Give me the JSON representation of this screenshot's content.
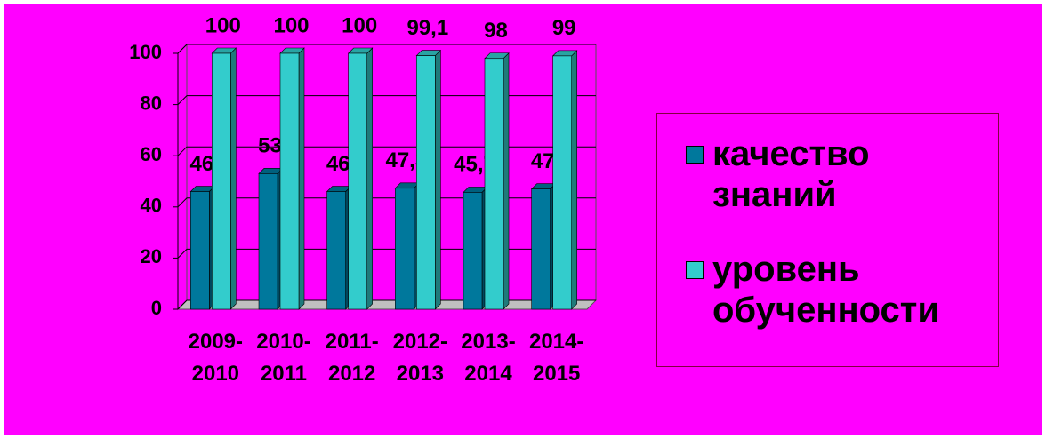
{
  "chart_data": {
    "type": "bar3d",
    "categories": [
      "2009-2010",
      "2010-2011",
      "2011-2012",
      "2012-2013",
      "2013-2014",
      "2014-2015"
    ],
    "series": [
      {
        "name": "качество знаний",
        "color": "#00789c",
        "values": [
          46,
          53,
          46,
          47.3,
          45.7,
          47
        ],
        "value_labels": [
          "46",
          "53",
          "46",
          "47,3",
          "45,7",
          "47"
        ]
      },
      {
        "name": "уровень обученности",
        "color": "#33cccc",
        "values": [
          100,
          100,
          100,
          99.1,
          98,
          99
        ],
        "value_labels": [
          "100",
          "100",
          "100",
          "99,1",
          "98",
          "99"
        ]
      }
    ],
    "ylim": [
      0,
      100
    ],
    "yticks": [
      0,
      20,
      40,
      60,
      80,
      100
    ],
    "grid": true,
    "legend": "right"
  }
}
